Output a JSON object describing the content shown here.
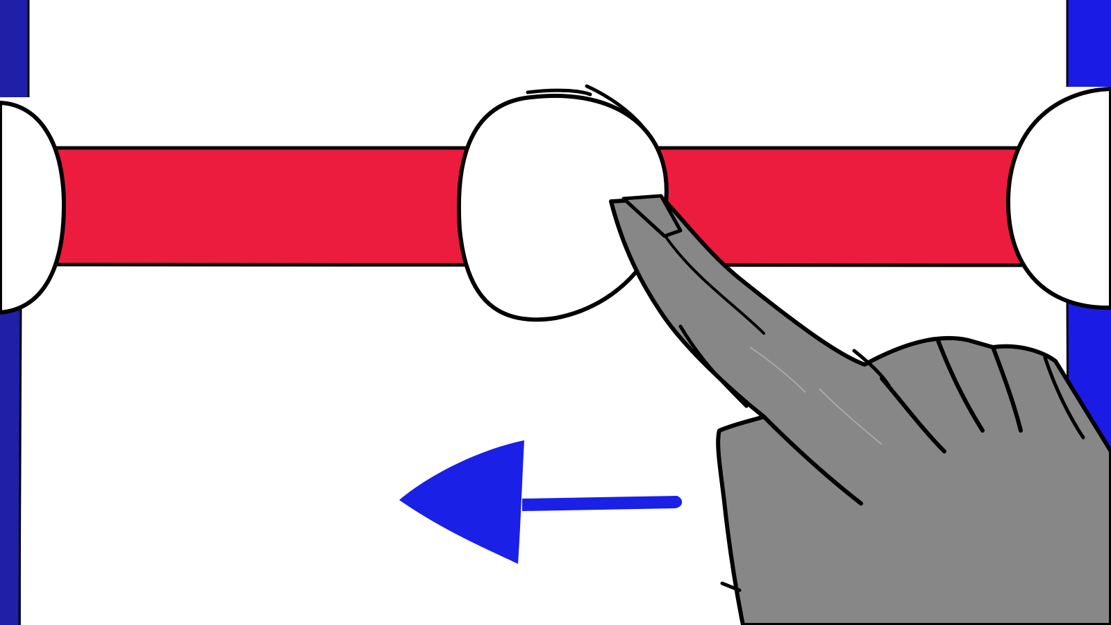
{
  "scene": {
    "gesture": "swipe-left",
    "slider_value_percent": 50
  },
  "colors": {
    "background": "#ffffff",
    "track_fill": "#ec1c3e",
    "side_bars": "#1f1fa8",
    "side_bars_right": "#1b1be6",
    "arrow": "#1a20e6",
    "hand_fill": "#878787",
    "outline": "#000000"
  },
  "icons": {
    "hand": "pointing-hand-icon",
    "arrow": "arrow-left-icon"
  }
}
